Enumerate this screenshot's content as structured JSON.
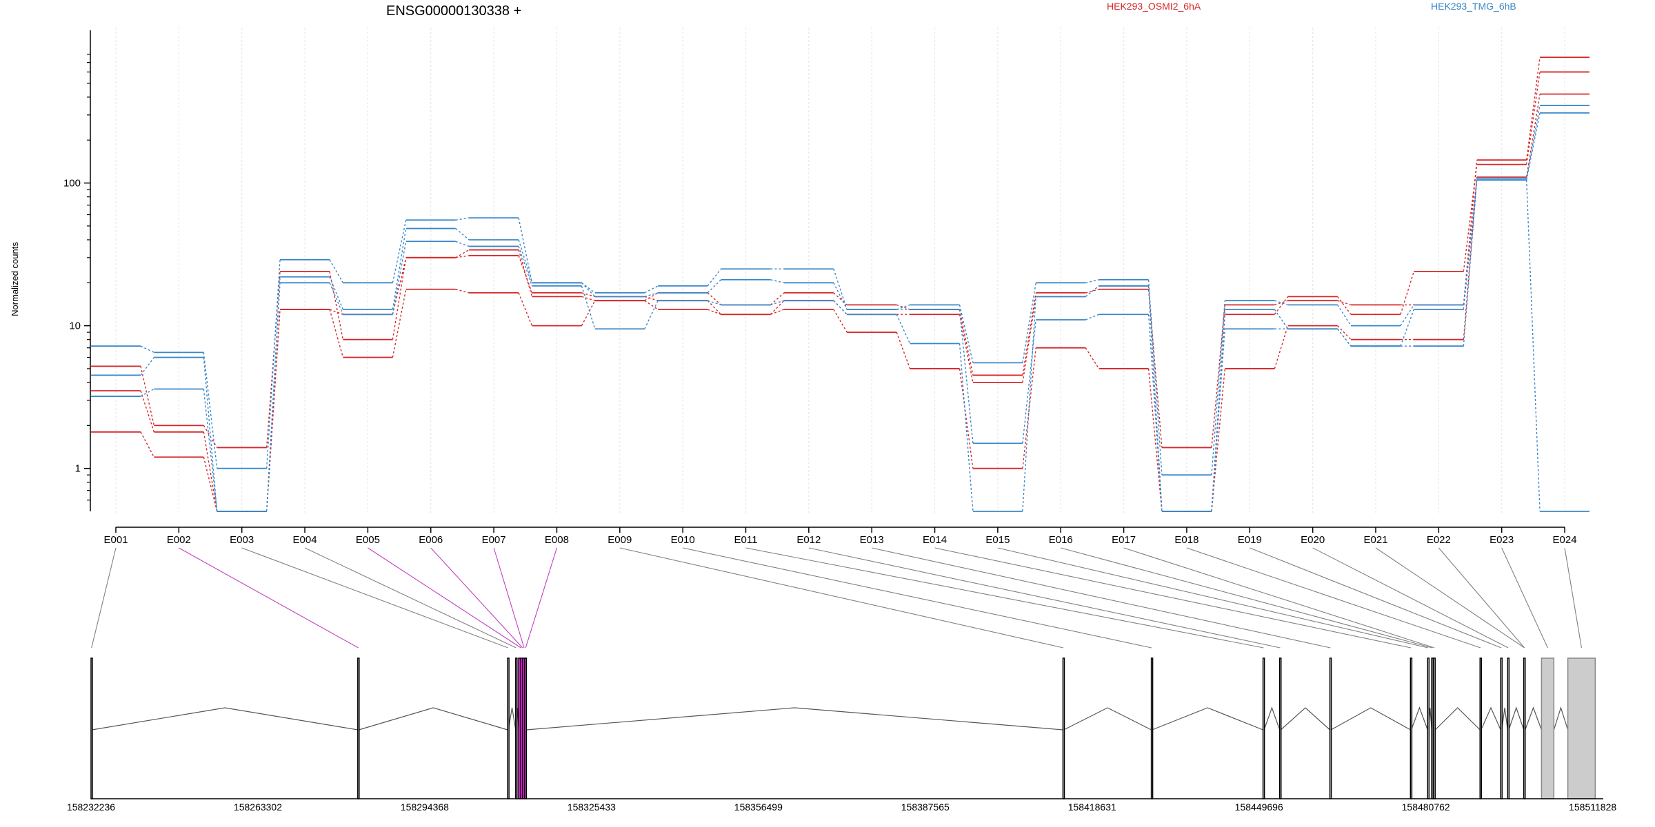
{
  "chart_data": {
    "type": "line",
    "title": "ENSG00000130338 +",
    "ylabel": "Normalized counts",
    "yscale": "log",
    "ylim": [
      0.5,
      900
    ],
    "yticks": [
      1,
      10,
      100
    ],
    "ytick_labels": [
      "1",
      "10",
      "100"
    ],
    "minor_yticks": [
      0.6,
      0.7,
      0.8,
      0.9,
      2,
      3,
      4,
      5,
      6,
      7,
      8,
      9,
      20,
      30,
      40,
      50,
      60,
      70,
      80,
      90,
      200,
      300,
      400,
      500,
      600,
      700,
      800
    ],
    "grid": "vertical dotted lines at each exon",
    "legend": [
      {
        "name": "HEK293_OSMI2_6hA",
        "color": "#d62728"
      },
      {
        "name": "HEK293_TMG_6hB",
        "color": "#3a87c8"
      }
    ],
    "categories": [
      "E001",
      "E002",
      "E003",
      "E004",
      "E005",
      "E006",
      "E007",
      "E008",
      "E009",
      "E010",
      "E011",
      "E012",
      "E013",
      "E014",
      "E015",
      "E016",
      "E017",
      "E018",
      "E019",
      "E020",
      "E021",
      "E022",
      "E023",
      "E024"
    ],
    "series": [
      {
        "group": "HEK293_OSMI2_6hA",
        "color": "#d62728",
        "values": [
          5.2,
          2.0,
          1.4,
          24,
          8.0,
          30,
          34,
          16,
          15,
          17,
          14,
          17,
          14,
          13,
          4.5,
          17,
          18,
          1.4,
          14,
          15,
          14,
          14,
          145,
          760
        ]
      },
      {
        "group": "HEK293_OSMI2_6hA",
        "color": "#d62728",
        "values": [
          3.5,
          1.8,
          0.5,
          13,
          12,
          30,
          31,
          17,
          16,
          15,
          12,
          15,
          12,
          12,
          4.0,
          16,
          19,
          0.5,
          12,
          16,
          12,
          24,
          135,
          600
        ]
      },
      {
        "group": "HEK293_OSMI2_6hA",
        "color": "#d62728",
        "values": [
          1.8,
          1.2,
          0.5,
          13,
          6.0,
          18,
          17,
          10,
          15,
          13,
          12,
          13,
          9,
          5,
          1.0,
          7,
          5,
          0.5,
          5,
          10,
          8,
          8,
          110,
          420
        ]
      },
      {
        "group": "HEK293_TMG_6hB",
        "color": "#3a87c8",
        "values": [
          7.2,
          6.5,
          1.0,
          29,
          20,
          55,
          57,
          20,
          17,
          19,
          25,
          25,
          13,
          14,
          5.5,
          20,
          21,
          0.9,
          15,
          14,
          10,
          14,
          108,
          350
        ]
      },
      {
        "group": "HEK293_TMG_6hB",
        "color": "#3a87c8",
        "values": [
          4.5,
          6.0,
          0.5,
          22,
          13,
          48,
          40,
          20,
          16,
          17,
          21,
          20,
          13,
          13,
          1.5,
          11,
          12,
          0.5,
          9.5,
          9.5,
          7.2,
          13,
          105,
          310
        ]
      },
      {
        "group": "HEK293_TMG_6hB",
        "color": "#3a87c8",
        "values": [
          3.2,
          3.6,
          0.5,
          20,
          12,
          39,
          36,
          19,
          9.5,
          15,
          14,
          15,
          12,
          7.5,
          0.5,
          16,
          19,
          0.5,
          13,
          9.5,
          7.2,
          7.2,
          105,
          0.5
        ]
      }
    ],
    "genomic_axis": {
      "ticks": [
        158232236,
        158263302,
        158294368,
        158325433,
        158356499,
        158387565,
        158418631,
        158449696,
        158480762,
        158511828
      ],
      "start": 158232236,
      "end": 158513800
    },
    "gene_model": {
      "exon_segments": [
        [
          158232236,
          158232420
        ],
        [
          158281900,
          158282100
        ],
        [
          158309800,
          158309950
        ],
        [
          158311300,
          158311450
        ],
        [
          158311850,
          158313300
        ],
        [
          158413200,
          158413350
        ],
        [
          158429650,
          158429800
        ],
        [
          158450450,
          158450650
        ],
        [
          158453550,
          158453750
        ],
        [
          158462900,
          158463100
        ],
        [
          158477900,
          158478050
        ],
        [
          158481100,
          158481250
        ],
        [
          158481850,
          158482000
        ],
        [
          158482200,
          158482500
        ],
        [
          158490850,
          158491050
        ],
        [
          158494700,
          158494900
        ],
        [
          158496000,
          158496200
        ],
        [
          158499000,
          158499250
        ],
        [
          158502300,
          158504600
        ],
        [
          158507200,
          158512300
        ]
      ],
      "highlighted_exons": [
        4
      ],
      "filled_exons": [
        18,
        19
      ],
      "exon_to_segment": [
        0,
        1,
        2,
        3,
        4,
        4,
        4,
        4,
        5,
        6,
        7,
        8,
        9,
        10,
        11,
        12,
        13,
        14,
        15,
        16,
        17,
        17,
        18,
        19
      ],
      "highlighted_labels": [
        "E002",
        "E005",
        "E006",
        "E007",
        "E008"
      ],
      "colors": {
        "highlight": "#e020d8",
        "filled": "#cccccc",
        "line": "#000000",
        "connector": "#808080",
        "highlight_connector": "#c040c0"
      }
    }
  }
}
